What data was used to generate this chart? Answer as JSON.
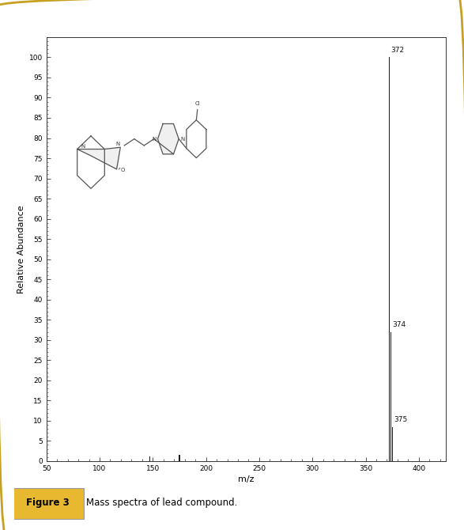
{
  "xlabel": "m/z",
  "ylabel": "Relative Abundance",
  "xlim": [
    50,
    425
  ],
  "ylim": [
    0,
    105
  ],
  "xticks": [
    50,
    100,
    150,
    200,
    250,
    300,
    350,
    400
  ],
  "yticks": [
    0,
    5,
    10,
    15,
    20,
    25,
    30,
    35,
    40,
    45,
    50,
    55,
    60,
    65,
    70,
    75,
    80,
    85,
    90,
    95,
    100
  ],
  "peaks": [
    {
      "mz": 147,
      "abundance": 1.2,
      "label": ""
    },
    {
      "mz": 175,
      "abundance": 1.5,
      "label": ""
    },
    {
      "mz": 372,
      "abundance": 100.0,
      "label": "372"
    },
    {
      "mz": 374,
      "abundance": 32.0,
      "label": "374"
    },
    {
      "mz": 375,
      "abundance": 8.5,
      "label": "375"
    }
  ],
  "bar_color": "#1a1a1a",
  "bar_width": 0.8,
  "caption_bold": "Figure 3",
  "caption_text": "    Mass spectra of lead compound.",
  "caption_bg": "#e8b830",
  "border_color": "#c8a020",
  "figure_bg": "#ffffff"
}
